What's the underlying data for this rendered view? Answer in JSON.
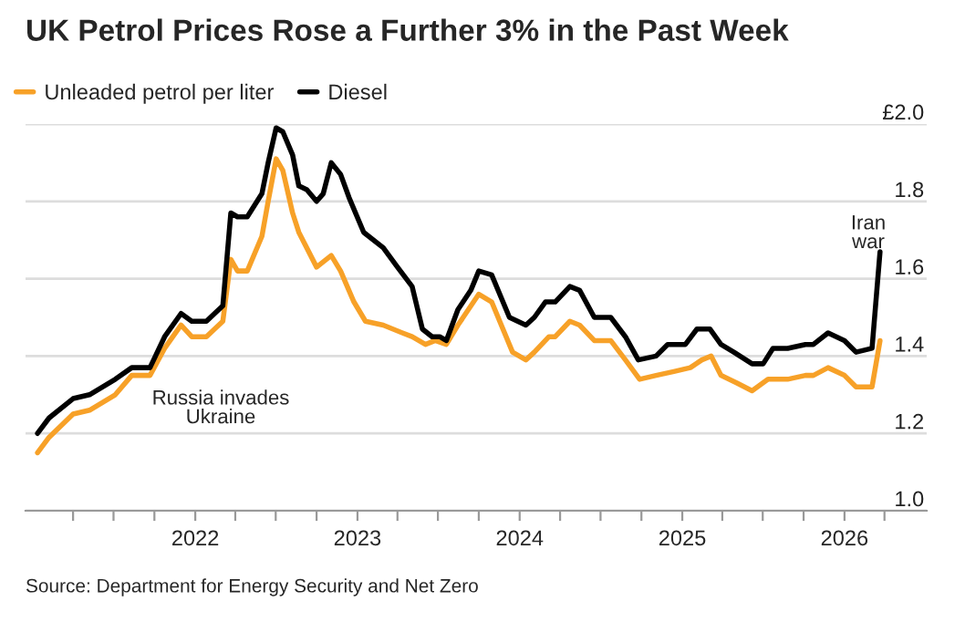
{
  "chart_data": {
    "type": "line",
    "title": "UK Petrol Prices Rose a Further 3% in the Past Week",
    "series": [
      {
        "name": "Unleaded petrol per liter",
        "color": "#f7a128",
        "x": [
          "2021-01-11",
          "2021-02-06",
          "2021-04-01",
          "2021-05-08",
          "2021-07-05",
          "2021-08-11",
          "2021-09-21",
          "2021-10-24",
          "2021-11-30",
          "2021-12-24",
          "2022-01-26",
          "2022-03-04",
          "2022-03-22",
          "2022-04-06",
          "2022-04-28",
          "2022-05-31",
          "2022-06-14",
          "2022-07-02",
          "2022-07-17",
          "2022-08-08",
          "2022-08-22",
          "2022-10-01",
          "2022-11-03",
          "2022-11-24",
          "2022-12-24",
          "2023-01-19",
          "2023-02-28",
          "2023-04-12",
          "2023-05-04",
          "2023-06-03",
          "2023-06-25",
          "2023-07-20",
          "2023-08-15",
          "2023-10-01",
          "2023-10-30",
          "2023-12-16",
          "2024-01-15",
          "2024-02-03",
          "2024-03-07",
          "2024-03-21",
          "2024-04-23",
          "2024-05-15",
          "2024-06-17",
          "2024-07-24",
          "2024-08-26",
          "2024-09-27",
          "2024-11-03",
          "2024-12-13",
          "2025-01-19",
          "2025-02-14",
          "2025-03-07",
          "2025-03-29",
          "2025-05-04",
          "2025-06-07",
          "2025-07-13",
          "2025-08-26",
          "2025-10-05",
          "2025-10-23",
          "2025-11-25",
          "2026-01-01",
          "2026-01-27",
          "2026-03-04",
          "2026-03-22"
        ],
        "values": [
          1.15,
          1.19,
          1.25,
          1.26,
          1.3,
          1.35,
          1.35,
          1.42,
          1.48,
          1.45,
          1.45,
          1.49,
          1.65,
          1.62,
          1.62,
          1.71,
          1.8,
          1.91,
          1.88,
          1.77,
          1.72,
          1.63,
          1.66,
          1.62,
          1.54,
          1.49,
          1.48,
          1.46,
          1.45,
          1.43,
          1.44,
          1.43,
          1.48,
          1.56,
          1.54,
          1.41,
          1.39,
          1.41,
          1.45,
          1.45,
          1.49,
          1.48,
          1.44,
          1.44,
          1.39,
          1.34,
          1.35,
          1.36,
          1.37,
          1.39,
          1.4,
          1.35,
          1.33,
          1.31,
          1.34,
          1.34,
          1.35,
          1.35,
          1.37,
          1.35,
          1.32,
          1.32,
          1.44
        ]
      },
      {
        "name": "Diesel",
        "color": "#000000",
        "x": [
          "2021-01-11",
          "2021-02-06",
          "2021-04-01",
          "2021-05-08",
          "2021-07-05",
          "2021-08-11",
          "2021-09-21",
          "2021-10-24",
          "2021-11-30",
          "2021-12-24",
          "2022-01-26",
          "2022-03-04",
          "2022-03-22",
          "2022-04-06",
          "2022-04-28",
          "2022-05-31",
          "2022-06-14",
          "2022-07-02",
          "2022-07-17",
          "2022-08-08",
          "2022-08-22",
          "2022-09-09",
          "2022-10-01",
          "2022-10-16",
          "2022-11-03",
          "2022-11-24",
          "2022-12-13",
          "2023-01-15",
          "2023-02-28",
          "2023-04-01",
          "2023-05-04",
          "2023-05-27",
          "2023-06-18",
          "2023-07-05",
          "2023-07-20",
          "2023-08-15",
          "2023-09-13",
          "2023-10-01",
          "2023-10-30",
          "2023-12-09",
          "2024-01-15",
          "2024-02-03",
          "2024-02-28",
          "2024-03-21",
          "2024-04-23",
          "2024-05-15",
          "2024-06-17",
          "2024-07-24",
          "2024-08-26",
          "2024-09-24",
          "2024-11-03",
          "2024-11-29",
          "2025-01-08",
          "2025-02-03",
          "2025-03-04",
          "2025-03-29",
          "2025-04-27",
          "2025-06-07",
          "2025-07-02",
          "2025-07-24",
          "2025-08-26",
          "2025-10-05",
          "2025-10-23",
          "2025-11-25",
          "2026-01-01",
          "2026-01-27",
          "2026-03-04",
          "2026-03-22"
        ],
        "values": [
          1.2,
          1.24,
          1.29,
          1.3,
          1.34,
          1.37,
          1.37,
          1.45,
          1.51,
          1.49,
          1.49,
          1.53,
          1.77,
          1.76,
          1.76,
          1.82,
          1.9,
          1.99,
          1.98,
          1.92,
          1.84,
          1.83,
          1.8,
          1.82,
          1.9,
          1.87,
          1.81,
          1.72,
          1.68,
          1.63,
          1.58,
          1.47,
          1.45,
          1.45,
          1.44,
          1.52,
          1.57,
          1.62,
          1.61,
          1.5,
          1.48,
          1.5,
          1.54,
          1.54,
          1.58,
          1.57,
          1.5,
          1.5,
          1.45,
          1.39,
          1.4,
          1.43,
          1.43,
          1.47,
          1.47,
          1.43,
          1.41,
          1.38,
          1.38,
          1.42,
          1.42,
          1.43,
          1.43,
          1.46,
          1.44,
          1.41,
          1.42,
          1.67
        ]
      }
    ],
    "xlim": [
      "2020-12-15",
      "2026-07-05"
    ],
    "xticks": [
      {
        "value": "2021-04-01",
        "label": null
      },
      {
        "value": "2021-07-01",
        "label": null
      },
      {
        "value": "2021-10-01",
        "label": null
      },
      {
        "value": "2022-01-01",
        "label": "2022"
      },
      {
        "value": "2022-04-01",
        "label": null
      },
      {
        "value": "2022-07-01",
        "label": null
      },
      {
        "value": "2022-10-01",
        "label": null
      },
      {
        "value": "2023-01-01",
        "label": "2023"
      },
      {
        "value": "2023-04-01",
        "label": null
      },
      {
        "value": "2023-07-01",
        "label": null
      },
      {
        "value": "2023-10-01",
        "label": null
      },
      {
        "value": "2024-01-01",
        "label": "2024"
      },
      {
        "value": "2024-04-01",
        "label": null
      },
      {
        "value": "2024-07-01",
        "label": null
      },
      {
        "value": "2024-10-01",
        "label": null
      },
      {
        "value": "2025-01-01",
        "label": "2025"
      },
      {
        "value": "2025-04-01",
        "label": null
      },
      {
        "value": "2025-07-01",
        "label": null
      },
      {
        "value": "2025-10-01",
        "label": null
      },
      {
        "value": "2026-01-01",
        "label": "2026"
      },
      {
        "value": "2026-04-01",
        "label": null
      }
    ],
    "ylim": [
      1.0,
      2.0
    ],
    "yticks": [
      {
        "value": 1.0,
        "label": "1.0"
      },
      {
        "value": 1.2,
        "label": "1.2"
      },
      {
        "value": 1.4,
        "label": "1.4"
      },
      {
        "value": 1.6,
        "label": "1.6"
      },
      {
        "value": 1.8,
        "label": "1.8"
      },
      {
        "value": 2.0,
        "label": "£2.0"
      }
    ],
    "grid": "y",
    "legend": "top left",
    "marker": "none",
    "line_style": "solid",
    "annotations": [
      "Russia invades\nUkraine",
      "Iran\nwar",
      "Source: Department for Energy Security and Net Zero"
    ]
  }
}
